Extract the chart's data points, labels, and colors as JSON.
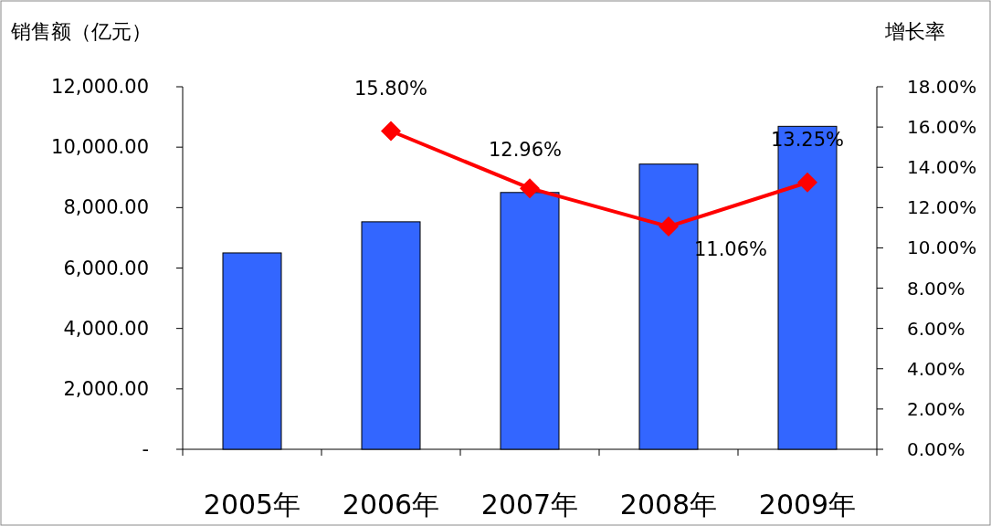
{
  "chart_data": {
    "type": "bar",
    "ylabel": "销售额（亿元）",
    "y2label": "增长率",
    "categories": [
      "2005年",
      "2006年",
      "2007年",
      "2008年",
      "2009年"
    ],
    "series": [
      {
        "color": "#3366ff",
        "values": [
          6500,
          7530,
          8500,
          9440,
          10690
        ]
      },
      {
        "type": "line",
        "axis": "y2",
        "color": "#ff0000",
        "marker": "diamond",
        "values": [
          null,
          15.8,
          12.96,
          11.06,
          13.25
        ],
        "value_labels": [
          null,
          "15.80%",
          "12.96%",
          "11.06%",
          "13.25%"
        ]
      }
    ],
    "ylim": [
      0,
      12000
    ],
    "yticks": [
      {
        "value": 0,
        "label": "-"
      },
      {
        "value": 2000,
        "label": "2,000.00"
      },
      {
        "value": 4000,
        "label": "4,000.00"
      },
      {
        "value": 6000,
        "label": "6,000.00"
      },
      {
        "value": 8000,
        "label": "8,000.00"
      },
      {
        "value": 10000,
        "label": "10,000.00"
      },
      {
        "value": 12000,
        "label": "12,000.00"
      }
    ],
    "y2lim": [
      0,
      18
    ],
    "y2ticks": [
      {
        "value": 0,
        "label": "0.00%"
      },
      {
        "value": 2,
        "label": "2.00%"
      },
      {
        "value": 4,
        "label": "4.00%"
      },
      {
        "value": 6,
        "label": "6.00%"
      },
      {
        "value": 8,
        "label": "8.00%"
      },
      {
        "value": 10,
        "label": "10.00%"
      },
      {
        "value": 12,
        "label": "12.00%"
      },
      {
        "value": 14,
        "label": "14.00%"
      },
      {
        "value": 16,
        "label": "16.00%"
      },
      {
        "value": 18,
        "label": "18.00%"
      }
    ],
    "grid": false
  }
}
